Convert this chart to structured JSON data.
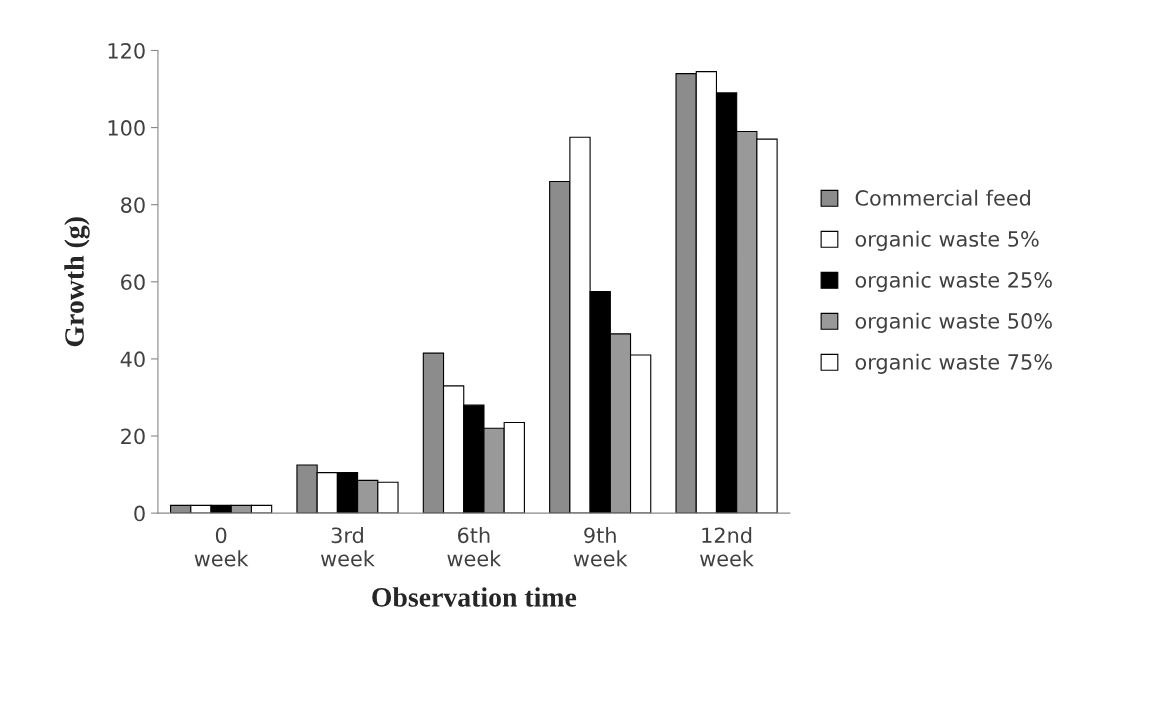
{
  "chart_data": {
    "type": "bar",
    "xlabel": "Observation time",
    "ylabel": "Growth (g)",
    "categories": [
      "0\nweek",
      "3rd\nweek",
      "6th\nweek",
      "9th\nweek",
      "12nd\nweek"
    ],
    "series": [
      {
        "name": "Commercial feed",
        "color": "#8c8c8c",
        "values": [
          2,
          12.5,
          41.5,
          86,
          114
        ]
      },
      {
        "name": "organic waste 5%",
        "color": "#ffffff",
        "values": [
          2,
          10.5,
          33,
          97.5,
          114.5
        ]
      },
      {
        "name": "organic waste 25%",
        "color": "#000000",
        "values": [
          2,
          10.5,
          28,
          57.5,
          109
        ]
      },
      {
        "name": "organic waste 50%",
        "color": "#999999",
        "values": [
          2,
          8.5,
          22,
          46.5,
          99
        ]
      },
      {
        "name": "organic waste 75%",
        "color": "#ffffff",
        "values": [
          2,
          8,
          23.5,
          41,
          97
        ]
      }
    ],
    "ylim": [
      0,
      120
    ],
    "yticks": [
      0,
      20,
      40,
      60,
      80,
      100,
      120
    ],
    "grid": false,
    "legend": "right"
  }
}
